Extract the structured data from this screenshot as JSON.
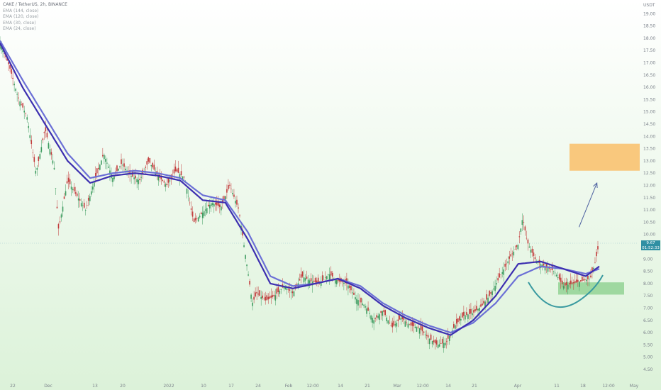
{
  "chart_data": {
    "type": "candlestick",
    "symbol_line": "CAKE / TetherUS, 2h, BINANCE",
    "indicators": [
      "EMA (144, close)",
      "EMA (120, close)",
      "EMA (30, close)",
      "EMA (24, close)"
    ],
    "currency": "USDT",
    "last_price": "9.67",
    "countdown": "01:52:33",
    "y_ticks": [
      "19.50",
      "19.00",
      "18.50",
      "18.00",
      "17.50",
      "17.00",
      "16.50",
      "16.00",
      "15.50",
      "15.00",
      "14.50",
      "14.00",
      "13.50",
      "13.00",
      "12.50",
      "12.00",
      "11.50",
      "11.00",
      "10.50",
      "10.00",
      "9.50",
      "9.00",
      "8.50",
      "8.00",
      "7.50",
      "7.00",
      "6.50",
      "6.00",
      "5.50",
      "5.00",
      "4.50"
    ],
    "x_ticks": [
      "22",
      "Dec",
      "13",
      "20",
      "2022",
      "10",
      "17",
      "24",
      "Feb",
      "12:00",
      "14",
      "21",
      "Mar",
      "12:00",
      "14",
      "21",
      "Apr",
      "11",
      "18",
      "12:00",
      "May"
    ],
    "ylim": [
      4.3,
      19.7
    ],
    "price_path": [
      [
        0,
        17.8
      ],
      [
        2,
        16.9
      ],
      [
        4,
        15.6
      ],
      [
        6,
        14.8
      ],
      [
        8,
        12.5
      ],
      [
        10,
        14.3
      ],
      [
        12,
        12.8
      ],
      [
        13,
        10.2
      ],
      [
        15,
        12.2
      ],
      [
        17,
        11.6
      ],
      [
        19,
        11.0
      ],
      [
        21,
        12.2
      ],
      [
        23,
        13.3
      ],
      [
        25,
        12.3
      ],
      [
        27,
        12.9
      ],
      [
        29,
        12.4
      ],
      [
        31,
        12.2
      ],
      [
        33,
        13.0
      ],
      [
        35,
        12.4
      ],
      [
        37,
        12.0
      ],
      [
        39,
        12.6
      ],
      [
        41,
        12.3
      ],
      [
        43,
        10.5
      ],
      [
        45,
        10.9
      ],
      [
        47,
        11.3
      ],
      [
        49,
        11.1
      ],
      [
        51,
        12.0
      ],
      [
        53,
        11.0
      ],
      [
        55,
        8.5
      ],
      [
        56,
        7.2
      ],
      [
        57,
        7.6
      ],
      [
        59,
        7.3
      ],
      [
        61,
        7.5
      ],
      [
        63,
        7.9
      ],
      [
        65,
        7.6
      ],
      [
        67,
        8.3
      ],
      [
        69,
        8.1
      ],
      [
        71,
        8.0
      ],
      [
        73,
        8.4
      ],
      [
        75,
        8.1
      ],
      [
        77,
        8.0
      ],
      [
        79,
        7.4
      ],
      [
        81,
        7.1
      ],
      [
        83,
        6.5
      ],
      [
        85,
        6.9
      ],
      [
        87,
        6.2
      ],
      [
        89,
        6.6
      ],
      [
        91,
        6.3
      ],
      [
        93,
        6.2
      ],
      [
        95,
        5.8
      ],
      [
        97,
        5.5
      ],
      [
        99,
        5.6
      ],
      [
        101,
        6.3
      ],
      [
        103,
        6.7
      ],
      [
        105,
        6.8
      ],
      [
        107,
        7.1
      ],
      [
        109,
        7.6
      ],
      [
        111,
        8.3
      ],
      [
        113,
        9.0
      ],
      [
        115,
        9.6
      ],
      [
        116,
        10.7
      ],
      [
        117,
        9.7
      ],
      [
        119,
        8.9
      ],
      [
        121,
        8.7
      ],
      [
        123,
        8.5
      ],
      [
        125,
        7.9
      ],
      [
        127,
        8.0
      ],
      [
        129,
        8.1
      ],
      [
        131,
        8.2
      ],
      [
        132,
        8.8
      ],
      [
        133,
        9.67
      ]
    ],
    "ema_fast_path": [
      [
        0,
        17.8
      ],
      [
        5,
        16.0
      ],
      [
        10,
        14.5
      ],
      [
        15,
        13.0
      ],
      [
        20,
        12.1
      ],
      [
        25,
        12.4
      ],
      [
        30,
        12.5
      ],
      [
        35,
        12.4
      ],
      [
        40,
        12.2
      ],
      [
        45,
        11.4
      ],
      [
        50,
        11.3
      ],
      [
        55,
        9.8
      ],
      [
        60,
        8.0
      ],
      [
        65,
        7.8
      ],
      [
        70,
        8.0
      ],
      [
        75,
        8.2
      ],
      [
        80,
        7.8
      ],
      [
        85,
        7.1
      ],
      [
        90,
        6.6
      ],
      [
        95,
        6.2
      ],
      [
        100,
        5.9
      ],
      [
        105,
        6.5
      ],
      [
        110,
        7.5
      ],
      [
        115,
        8.8
      ],
      [
        120,
        8.9
      ],
      [
        125,
        8.6
      ],
      [
        130,
        8.3
      ],
      [
        133,
        8.7
      ]
    ],
    "ema_slow_path": [
      [
        0,
        17.9
      ],
      [
        5,
        16.3
      ],
      [
        10,
        14.8
      ],
      [
        15,
        13.3
      ],
      [
        20,
        12.3
      ],
      [
        25,
        12.5
      ],
      [
        30,
        12.6
      ],
      [
        35,
        12.5
      ],
      [
        40,
        12.3
      ],
      [
        45,
        11.6
      ],
      [
        50,
        11.4
      ],
      [
        55,
        10.1
      ],
      [
        60,
        8.3
      ],
      [
        65,
        7.9
      ],
      [
        70,
        8.0
      ],
      [
        75,
        8.2
      ],
      [
        80,
        7.9
      ],
      [
        85,
        7.2
      ],
      [
        90,
        6.7
      ],
      [
        95,
        6.3
      ],
      [
        100,
        6.0
      ],
      [
        105,
        6.4
      ],
      [
        110,
        7.2
      ],
      [
        115,
        8.3
      ],
      [
        120,
        8.7
      ],
      [
        125,
        8.6
      ],
      [
        130,
        8.4
      ],
      [
        133,
        8.6
      ]
    ],
    "resistance_zone": {
      "from_bar": 117,
      "to_bar": 133,
      "y_low": 12.6,
      "y_high": 13.7
    },
    "support_zone": {
      "from_bar": 123,
      "to_bar": 133,
      "y_low": 7.55,
      "y_high": 8.05
    },
    "arrow": {
      "from": [
        128.5,
        10.3
      ],
      "to": [
        132,
        12.1
      ]
    },
    "bars_total": 133
  },
  "colors": {
    "ema_fast": "#3d2fb0",
    "ema_slow": "#6b6fd6",
    "bg_top": "#ffffff",
    "bg_bottom": "#def3dc",
    "resistance": "#f9c87d",
    "support": "#9fd8a0",
    "curve": "#3a9aa0",
    "arrow": "#4b5f9f",
    "candle_up": "#3d9b5f",
    "candle_down": "#c23b3b",
    "price_box": "#2f8fa3"
  }
}
